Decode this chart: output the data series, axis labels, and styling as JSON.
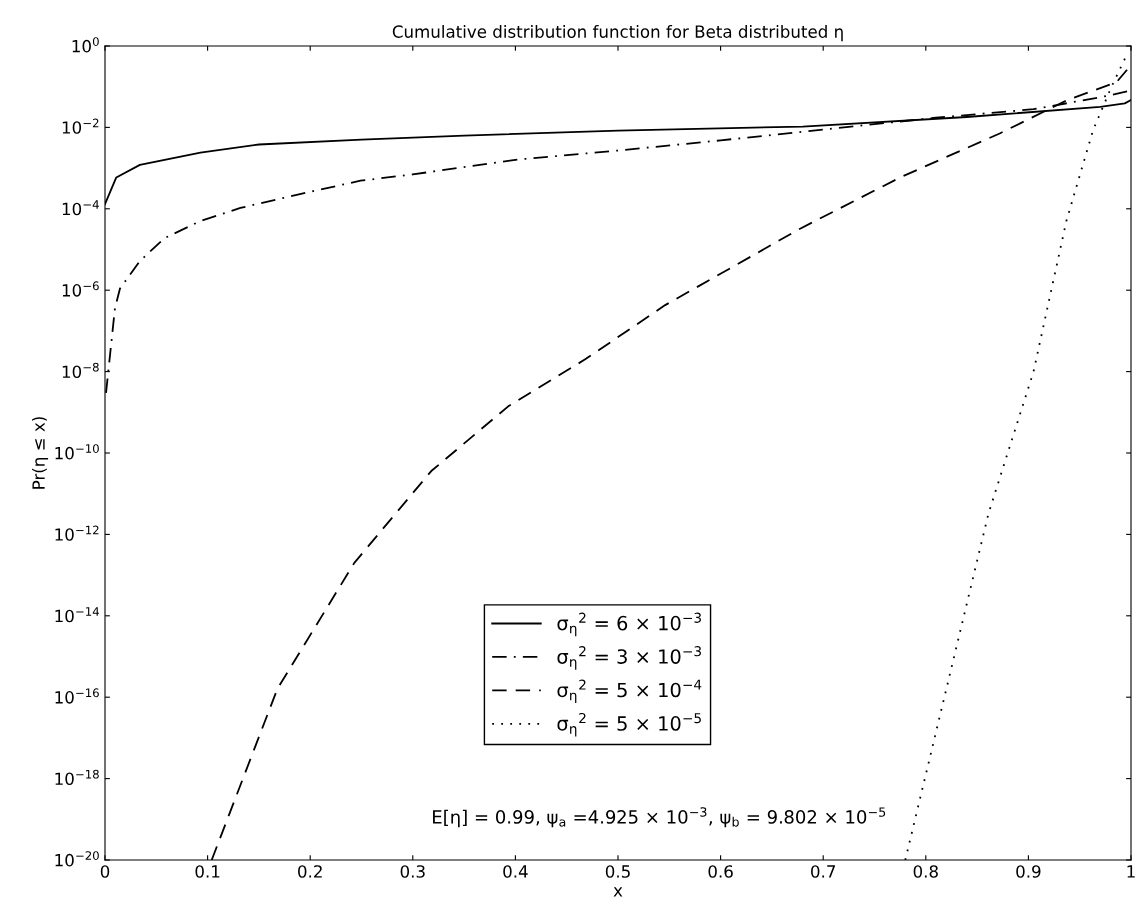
{
  "chart_data": {
    "type": "line",
    "title": "Cumulative distribution function for Beta distributed η",
    "xlabel": "x",
    "ylabel": "Pr(η ≤ x)",
    "log": "y",
    "xlim": [
      0,
      1
    ],
    "xticks": [
      0,
      0.1,
      0.2,
      0.3,
      0.4,
      0.5,
      0.6,
      0.7,
      0.8,
      0.9,
      1
    ],
    "ylim": [
      1e-20,
      1
    ],
    "yticks": [
      {
        "value": 1e-20,
        "label": "10$^{−20}$"
      },
      {
        "value": 1e-18,
        "label": "10$^{−18}$"
      },
      {
        "value": 1e-16,
        "label": "10$^{−16}$"
      },
      {
        "value": 1e-14,
        "label": "10$^{−14}$"
      },
      {
        "value": 1e-12,
        "label": "10$^{−12}$"
      },
      {
        "value": 1e-10,
        "label": "10$^{−10}$"
      },
      {
        "value": 1e-08,
        "label": "10$^{−8}$"
      },
      {
        "value": 1e-06,
        "label": "10$^{−6}$"
      },
      {
        "value": 0.0001,
        "label": "10$^{−4}$"
      },
      {
        "value": 0.01,
        "label": "10$^{−2}$"
      },
      {
        "value": 1,
        "label": "10$^{0}$"
      }
    ],
    "grid": false,
    "legend": "bottom",
    "annotations": [
      "E[η] = 0.99, ψ$_{a}$ =4.925 × 10$^{−3}$, ψ$_{b}$ = 9.802 × 10$^{−5}$"
    ],
    "series": [
      {
        "name": "σ$_{η}$$^{2}$ = 6 × 10$^{−3}$",
        "color": "#000000",
        "line_style": "solid",
        "x": [
          0,
          0.011,
          0.034,
          0.093,
          0.15,
          0.25,
          0.35,
          0.5,
          0.68,
          0.84,
          0.97,
          0.994,
          1.0
        ],
        "values": [
          0.00013,
          0.00059,
          0.0012,
          0.0024,
          0.0038,
          0.005,
          0.0063,
          0.0083,
          0.0105,
          0.018,
          0.032,
          0.039,
          0.047
        ]
      },
      {
        "name": "σ$_{η}$$^{2}$ = 3 × 10$^{−3}$",
        "color": "#000000",
        "line_style": "dashdot",
        "x": [
          0.001,
          0.0097,
          0.0146,
          0.034,
          0.058,
          0.093,
          0.132,
          0.19,
          0.249,
          0.3,
          0.4,
          0.5,
          0.6,
          0.807,
          0.905,
          0.97,
          1.0
        ],
        "values": [
          3e-09,
          3.6e-07,
          1.1e-06,
          5.2e-06,
          1.9e-05,
          5e-05,
          0.000105,
          0.00023,
          0.00049,
          0.0007,
          0.0016,
          0.0027,
          0.0048,
          0.017,
          0.028,
          0.055,
          0.08
        ]
      },
      {
        "name": "σ$_{η}$$^{2}$ = 5 × 10$^{−4}$",
        "color": "#000000",
        "line_style": "dashed",
        "x": [
          0.104,
          0.168,
          0.243,
          0.318,
          0.393,
          0.468,
          0.546,
          0.677,
          0.775,
          0.872,
          0.938,
          0.986,
          1.0
        ],
        "values": [
          1e-20,
          1.6e-16,
          2e-13,
          3.6e-11,
          1.4e-09,
          2e-08,
          4.3e-07,
          3.2e-05,
          0.00059,
          0.0071,
          0.047,
          0.13,
          0.34
        ]
      },
      {
        "name": "σ$_{η}$$^{2}$ = 5 × 10$^{−5}$",
        "color": "#000000",
        "line_style": "dotted",
        "x": [
          0.78,
          0.861,
          0.905,
          0.937,
          0.963,
          0.981,
          0.997
        ],
        "values": [
          1e-20,
          3.2e-12,
          1e-08,
          5e-05,
          0.0085,
          0.1,
          0.7
        ]
      }
    ]
  }
}
